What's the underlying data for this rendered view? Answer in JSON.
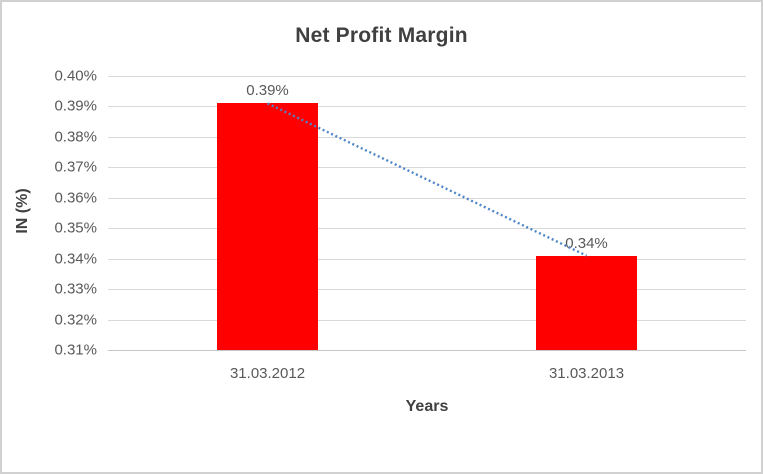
{
  "colors": {
    "bar": "#FF0000",
    "trendline": "#4E86C8",
    "gridline": "#D9D9D9",
    "axis_line": "#C6C6C6",
    "title_text": "#404040",
    "tick_text": "#595959",
    "border": "#D1D1D1",
    "background": "#FFFFFF"
  },
  "chart_data": {
    "type": "bar",
    "title": "Net Profit Margin",
    "xlabel": "Years",
    "ylabel": "IN (%)",
    "categories": [
      "31.03.2012",
      "31.03.2013"
    ],
    "values": [
      0.391,
      0.341
    ],
    "data_labels": [
      "0.39%",
      "0.34%"
    ],
    "y_tick_labels": [
      "0.31%",
      "0.32%",
      "0.33%",
      "0.34%",
      "0.35%",
      "0.36%",
      "0.37%",
      "0.38%",
      "0.39%",
      "0.40%"
    ],
    "ylim": [
      0.31,
      0.4
    ],
    "y_tick_step": 0.01,
    "grid": true,
    "legend": "none",
    "trendline": {
      "type": "linear",
      "style": "dotted",
      "from_value": 0.391,
      "to_value": 0.341
    }
  }
}
